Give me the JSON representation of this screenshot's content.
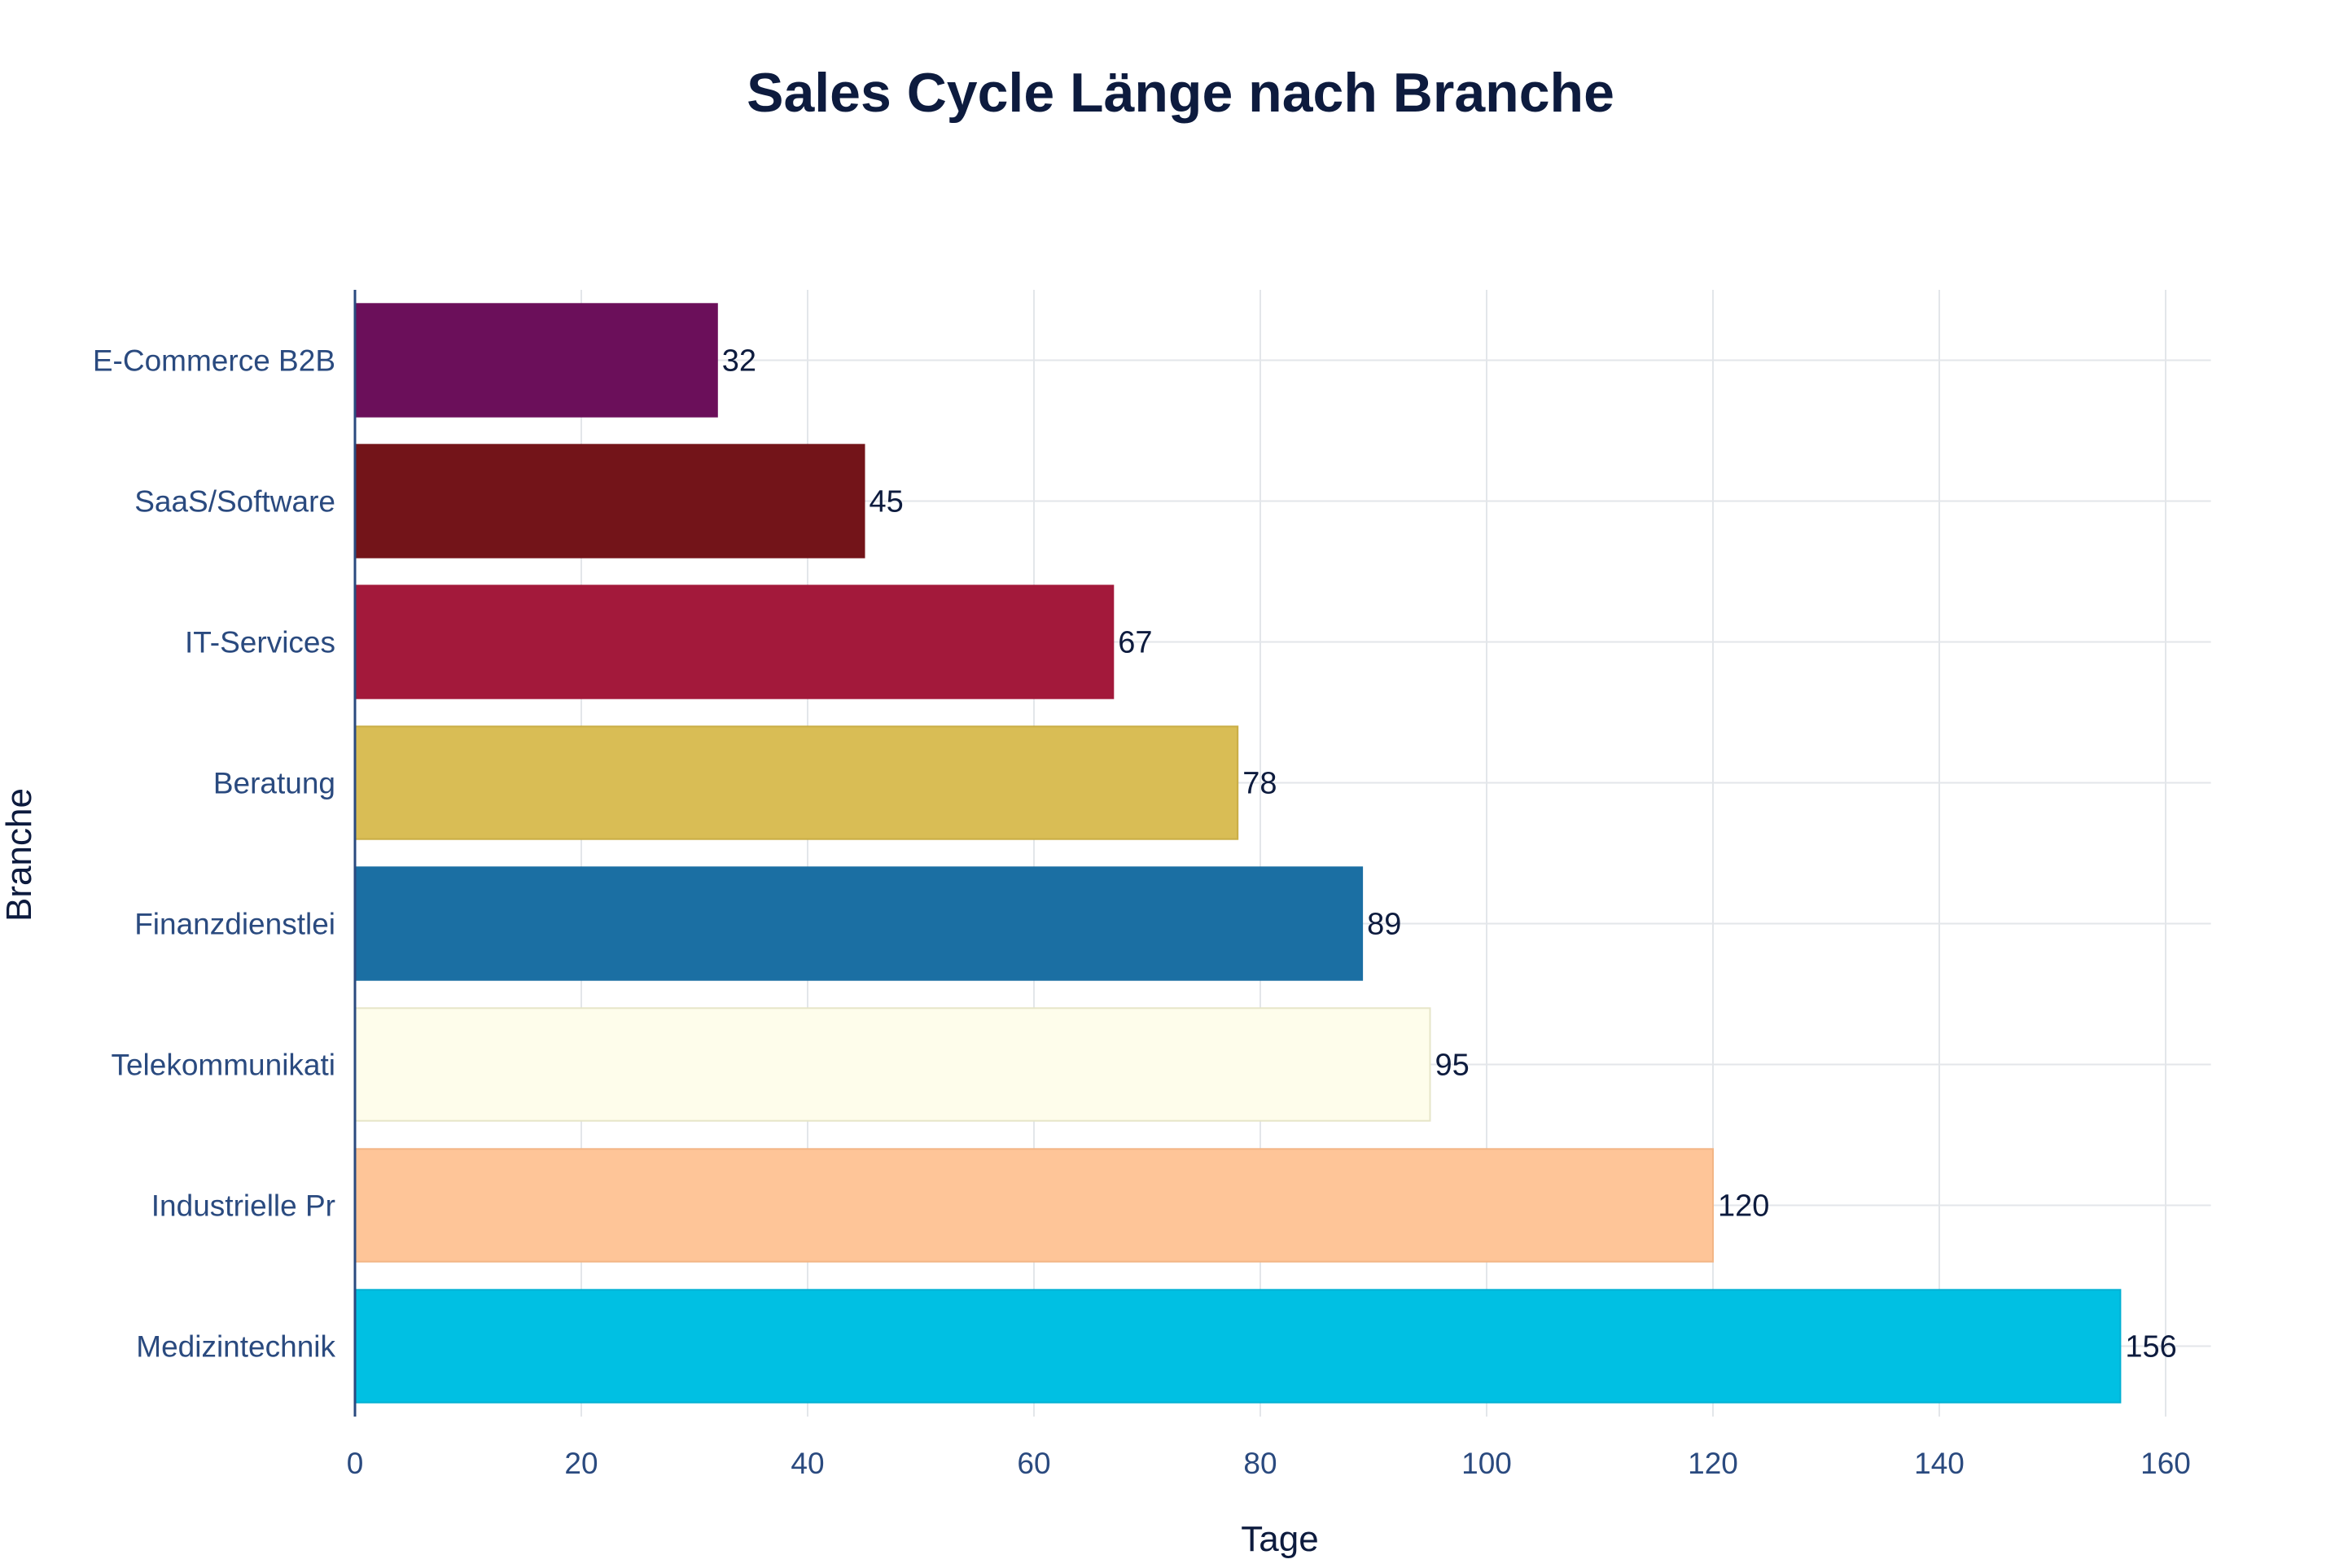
{
  "chart_data": {
    "type": "bar",
    "orientation": "horizontal",
    "title": "Sales Cycle Länge nach Branche",
    "xlabel": "Tage",
    "ylabel": "Branche",
    "xlim": [
      0,
      164
    ],
    "x_ticks": [
      0,
      20,
      40,
      60,
      80,
      100,
      120,
      140,
      160
    ],
    "grid": true,
    "legend": "none",
    "categories": [
      "E-Commerce B2B",
      "SaaS/Software",
      "IT-Services",
      "Beratung",
      "Finanzdienstlei",
      "Telekommunikati",
      "Industrielle Pr",
      "Medizintechnik"
    ],
    "values": [
      32,
      45,
      67,
      78,
      89,
      95,
      120,
      156
    ],
    "colors": [
      "#6b0f5a",
      "#731419",
      "#a3193b",
      "#d9bd55",
      "#1b6fa3",
      "#fefdeb",
      "#fec598",
      "#00c0e3"
    ],
    "bar_edge_colors": [
      "#6b0f5a",
      "#731419",
      "#a3193b",
      "#c9ad45",
      "#1b6fa3",
      "#e6e5c8",
      "#f3b585",
      "#00b0d3"
    ]
  }
}
